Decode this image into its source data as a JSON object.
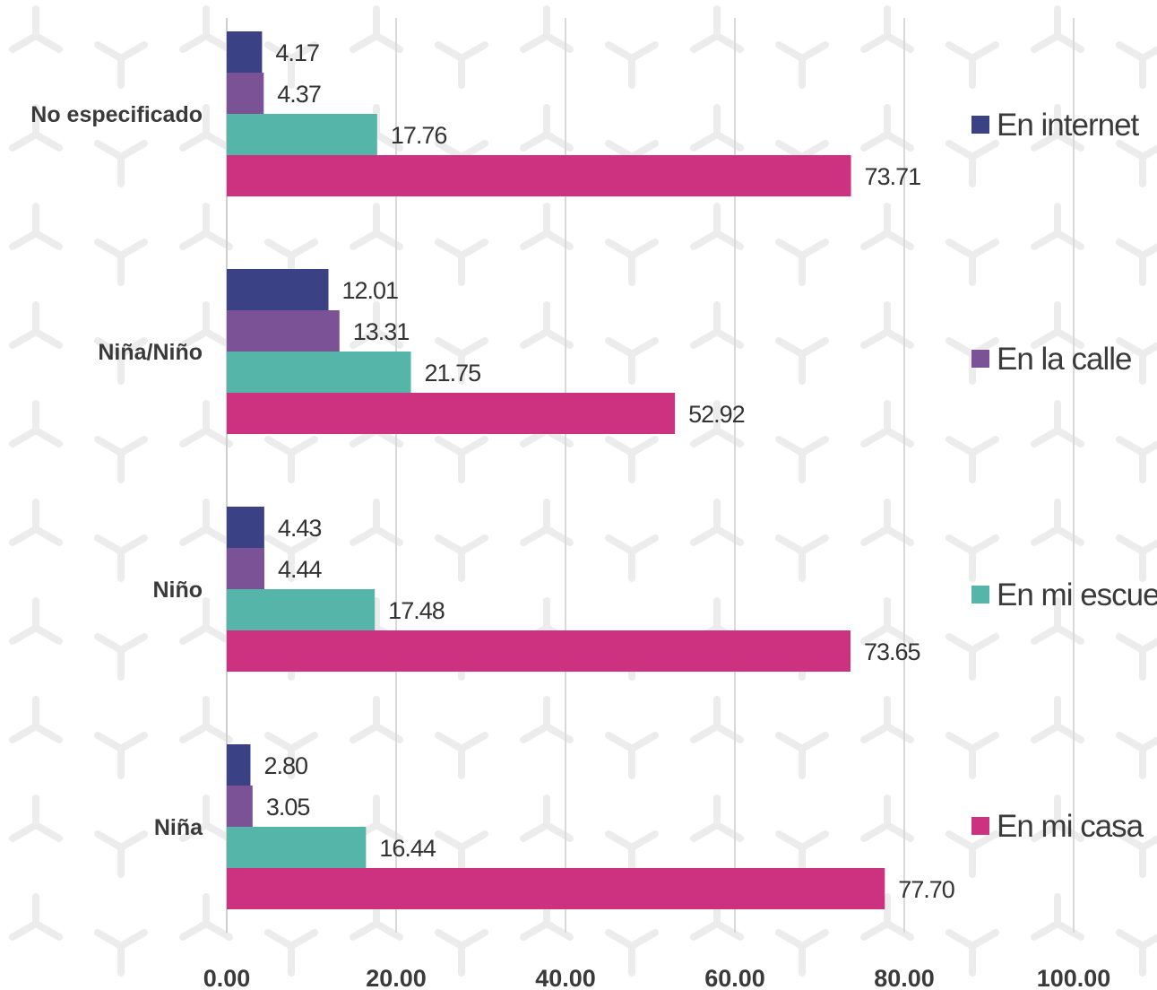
{
  "chart_data": {
    "type": "bar",
    "orientation": "horizontal",
    "categories": [
      "No especificado",
      "Niña/Niño",
      "Niño",
      "Niña"
    ],
    "series": [
      {
        "name": "En internet",
        "color": "#3a4185",
        "values": [
          4.17,
          12.01,
          4.43,
          2.8
        ],
        "labels": [
          "4.17",
          "12.01",
          "4.43",
          "2.80"
        ]
      },
      {
        "name": "En la calle",
        "color": "#7a5295",
        "values": [
          4.37,
          13.31,
          4.44,
          3.05
        ],
        "labels": [
          "4.37",
          "13.31",
          "4.44",
          "3.05"
        ]
      },
      {
        "name": "En mi escuela",
        "color": "#55b5a8",
        "values": [
          17.76,
          21.75,
          17.48,
          16.44
        ],
        "labels": [
          "17.76",
          "21.75",
          "17.48",
          "16.44"
        ]
      },
      {
        "name": "En mi casa",
        "color": "#cc3280",
        "values": [
          73.71,
          52.92,
          73.65,
          77.7
        ],
        "labels": [
          "73.71",
          "52.92",
          "73.65",
          "77.70"
        ]
      }
    ],
    "x_ticks": [
      "0.00",
      "20.00",
      "40.00",
      "60.00",
      "80.00",
      "100.00"
    ],
    "xlim": [
      0,
      100
    ],
    "grid": true,
    "legend_position": "right"
  }
}
